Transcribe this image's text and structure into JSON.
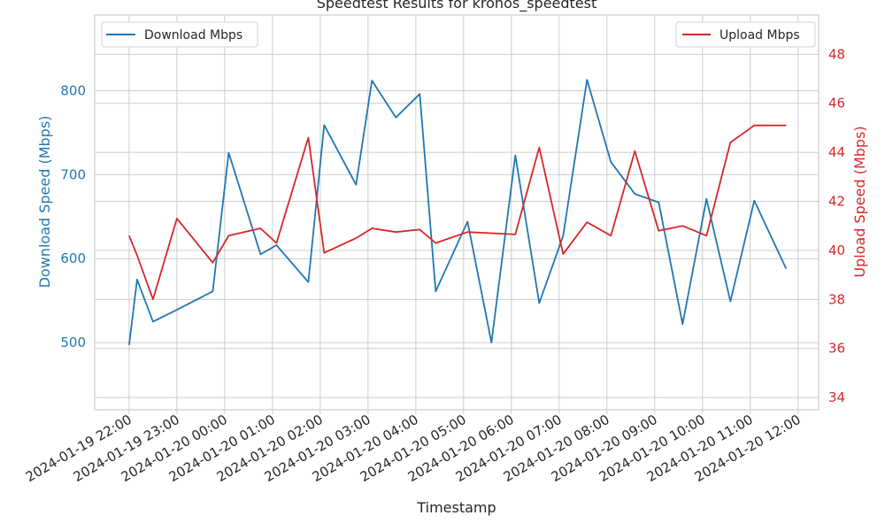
{
  "chart_data": {
    "type": "line",
    "title": "Speedtest Results for kronos_speedtest",
    "xlabel": "Timestamp",
    "ylabel_left": "Download Speed (Mbps)",
    "ylabel_right": "Upload Speed (Mbps)",
    "ylim_left": [
      420,
      890
    ],
    "ylim_right": [
      33.5,
      49.6
    ],
    "yticks_left": [
      500,
      600,
      700,
      800
    ],
    "yticks_right": [
      34,
      36,
      38,
      40,
      42,
      44,
      46,
      48
    ],
    "x_tick_labels": [
      "2024-01-19 22:00",
      "2024-01-19 23:00",
      "2024-01-20 00:00",
      "2024-01-20 01:00",
      "2024-01-20 02:00",
      "2024-01-20 03:00",
      "2024-01-20 04:00",
      "2024-01-20 05:00",
      "2024-01-20 06:00",
      "2024-01-20 07:00",
      "2024-01-20 08:00",
      "2024-01-20 09:00",
      "2024-01-20 10:00",
      "2024-01-20 11:00",
      "2024-01-20 12:00"
    ],
    "x": [
      "2024-01-19 22:00",
      "2024-01-19 22:10",
      "2024-01-19 22:30",
      "2024-01-19 23:00",
      "2024-01-19 23:45",
      "2024-01-20 00:05",
      "2024-01-20 00:45",
      "2024-01-20 01:05",
      "2024-01-20 01:45",
      "2024-01-20 02:05",
      "2024-01-20 02:45",
      "2024-01-20 03:05",
      "2024-01-20 03:35",
      "2024-01-20 04:05",
      "2024-01-20 04:25",
      "2024-01-20 05:05",
      "2024-01-20 05:35",
      "2024-01-20 06:05",
      "2024-01-20 06:35",
      "2024-01-20 07:05",
      "2024-01-20 07:35",
      "2024-01-20 08:05",
      "2024-01-20 08:35",
      "2024-01-20 09:05",
      "2024-01-20 09:35",
      "2024-01-20 10:05",
      "2024-01-20 10:35",
      "2024-01-20 11:05",
      "2024-01-20 11:45"
    ],
    "series": [
      {
        "name": "Download Mbps",
        "color": "#1f77b4",
        "axis": "left",
        "values": [
          497,
          575,
          525,
          539,
          561,
          726,
          605,
          616,
          572,
          759,
          688,
          812,
          768,
          796,
          561,
          644,
          500,
          723,
          547,
          627,
          813,
          715,
          677,
          667,
          522,
          671,
          549,
          669,
          588
        ]
      },
      {
        "name": "Upload Mbps",
        "color": "#d62728",
        "axis": "right",
        "values": [
          40.6,
          39.8,
          38.0,
          41.3,
          39.5,
          40.6,
          40.9,
          40.3,
          44.6,
          39.9,
          40.5,
          40.9,
          40.75,
          40.85,
          40.3,
          40.75,
          40.7,
          40.65,
          44.2,
          39.85,
          41.15,
          40.6,
          44.05,
          40.8,
          41.0,
          40.6,
          44.4,
          45.1,
          45.1
        ]
      }
    ],
    "legend_left": "top-left",
    "legend_right": "top-right",
    "grid": true
  }
}
